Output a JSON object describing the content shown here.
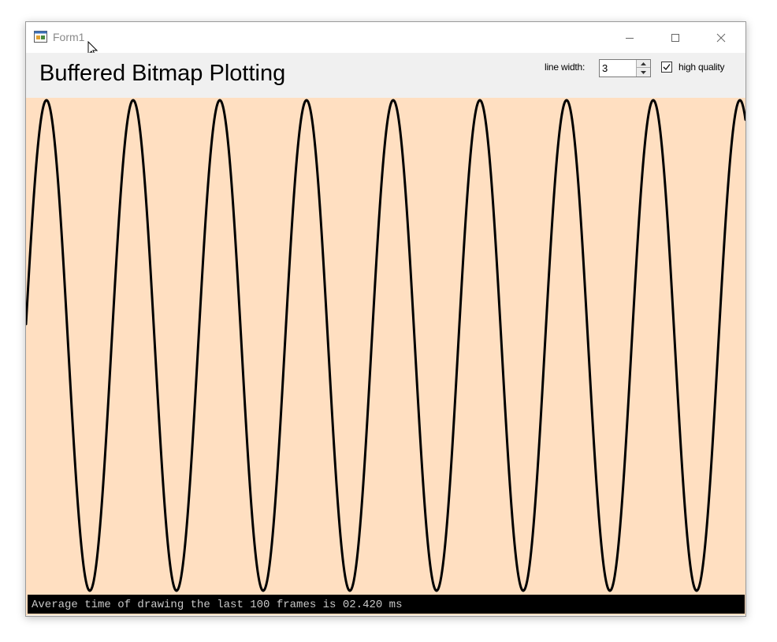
{
  "window": {
    "title": "Form1",
    "app_icon": "windows-forms-app-icon",
    "controls": [
      "minimize-icon",
      "maximize-icon",
      "close-icon"
    ]
  },
  "header": {
    "title": "Buffered Bitmap Plotting",
    "line_width_label": "line width:",
    "line_width_value": "3",
    "high_quality_label": "high quality",
    "high_quality_checked": true
  },
  "plot": {
    "background_color": "#ffdfc1",
    "line_color": "#000000",
    "waveform": "sine",
    "line_width": 3,
    "cycles_visible": 8.3,
    "start_phase_degrees": 5
  },
  "status": {
    "text": "Average time of drawing the last 100 frames is 02.420 ms"
  }
}
